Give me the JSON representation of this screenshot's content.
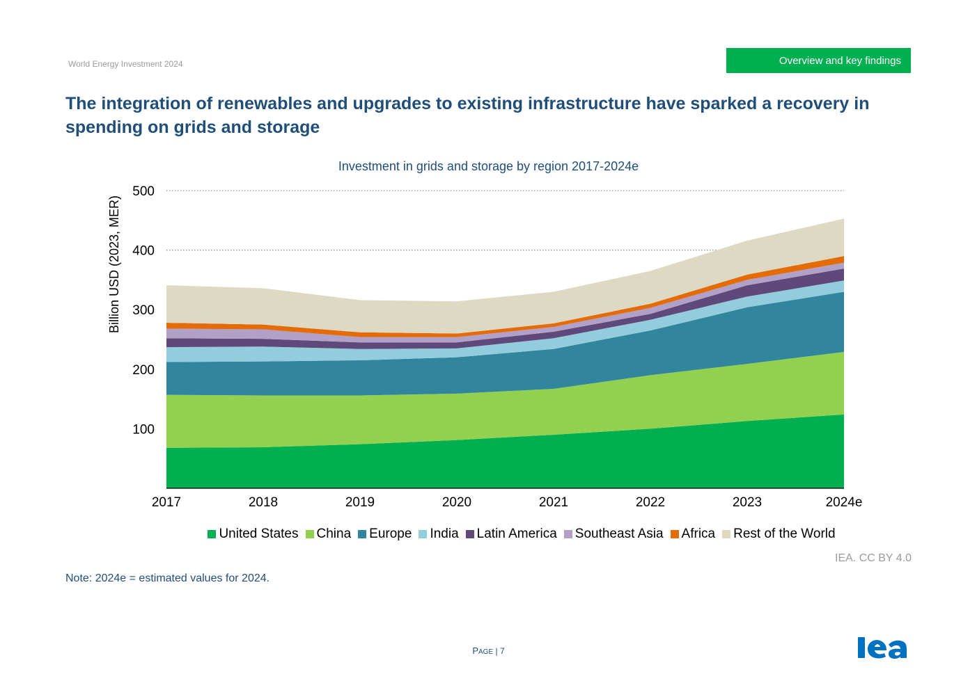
{
  "header": {
    "report": "World Energy Investment 2024",
    "section": "Overview and key findings"
  },
  "title": "The integration of renewables and upgrades to existing infrastructure have sparked a recovery in spending on grids and storage",
  "chart_data": {
    "type": "area",
    "stacked": true,
    "title": "Investment in grids and storage by region 2017-2024e",
    "ylabel": "Billion USD (2023, MER)",
    "xlabel": "",
    "categories": [
      "2017",
      "2018",
      "2019",
      "2020",
      "2021",
      "2022",
      "2023",
      "2024e"
    ],
    "yticks": [
      "100",
      "200",
      "300",
      "400",
      "500"
    ],
    "ylim": [
      0,
      500
    ],
    "grid": true,
    "legend_position": "bottom",
    "series": [
      {
        "name": "United States",
        "color": "#00b050",
        "values": [
          68,
          69,
          74,
          81,
          90,
          100,
          113,
          124
        ]
      },
      {
        "name": "China",
        "color": "#92d050",
        "values": [
          89,
          87,
          82,
          78,
          77,
          90,
          96,
          105
        ]
      },
      {
        "name": "Europe",
        "color": "#31859c",
        "values": [
          55,
          57,
          59,
          61,
          67,
          75,
          95,
          101
        ]
      },
      {
        "name": "India",
        "color": "#93cddd",
        "values": [
          25,
          25,
          19,
          15,
          18,
          18,
          18,
          19
        ]
      },
      {
        "name": "Latin America",
        "color": "#5f497a",
        "values": [
          15,
          13,
          11,
          10,
          11,
          10,
          19,
          20
        ]
      },
      {
        "name": "Southeast Asia",
        "color": "#b1a0c7",
        "values": [
          16,
          16,
          9,
          9,
          8,
          10,
          9,
          10
        ]
      },
      {
        "name": "Africa",
        "color": "#e36c09",
        "values": [
          10,
          8,
          8,
          6,
          6,
          7,
          9,
          11
        ]
      },
      {
        "name": "Rest of the World",
        "color": "#ddd9c3",
        "values": [
          63,
          61,
          54,
          54,
          53,
          55,
          57,
          63
        ]
      }
    ]
  },
  "source": "IEA. CC BY 4.0",
  "note": "Note: 2024e = estimated values for 2024.",
  "footer": {
    "page_label": "Page",
    "separator": "|",
    "page_number": "7",
    "logo_text": "iea"
  }
}
